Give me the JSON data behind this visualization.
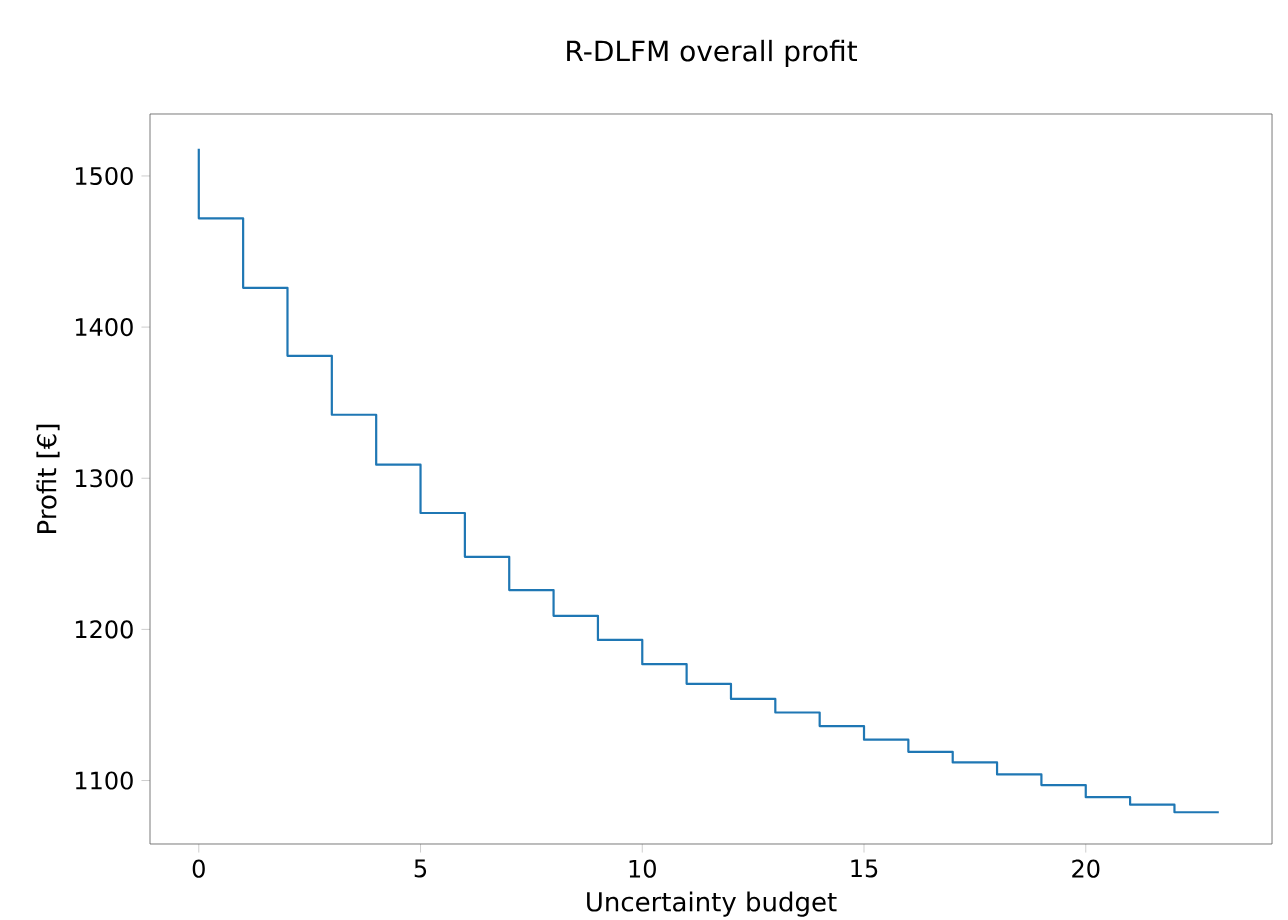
{
  "chart_data": {
    "type": "step",
    "title": "R-DLFM overall profit",
    "xlabel": "Uncertainty budget",
    "ylabel": "Profit [€]",
    "x": [
      0,
      1,
      2,
      3,
      4,
      5,
      6,
      7,
      8,
      9,
      10,
      11,
      12,
      13,
      14,
      15,
      16,
      17,
      18,
      19,
      20,
      21,
      22,
      23
    ],
    "series": [
      {
        "color": "#1f77b4",
        "values": [
          1518,
          1472,
          1426,
          1381,
          1342,
          1309,
          1277,
          1248,
          1226,
          1209,
          1193,
          1177,
          1164,
          1154,
          1145,
          1136,
          1127,
          1119,
          1112,
          1104,
          1097,
          1089,
          1084,
          1079
        ]
      }
    ],
    "xlim": [
      -1.1,
      24.2
    ],
    "ylim": [
      1058,
      1541
    ],
    "xticks": [
      0,
      5,
      10,
      15,
      20
    ],
    "yticks": [
      1100,
      1200,
      1300,
      1400,
      1500
    ]
  }
}
